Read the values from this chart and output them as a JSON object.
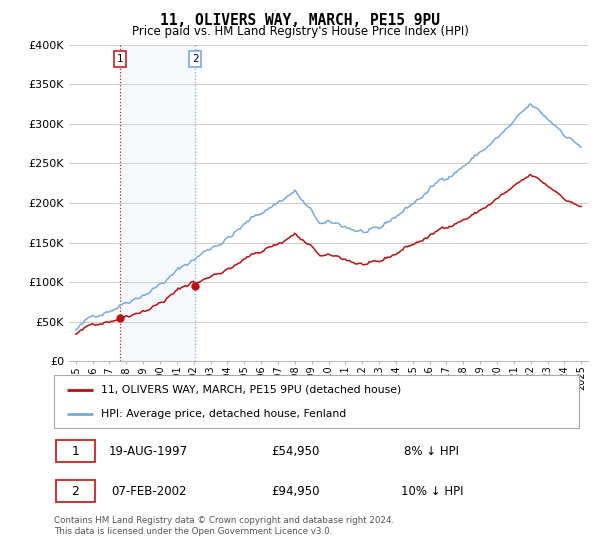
{
  "title": "11, OLIVERS WAY, MARCH, PE15 9PU",
  "subtitle": "Price paid vs. HM Land Registry's House Price Index (HPI)",
  "legend_line1": "11, OLIVERS WAY, MARCH, PE15 9PU (detached house)",
  "legend_line2": "HPI: Average price, detached house, Fenland",
  "purchase1_date": "19-AUG-1997",
  "purchase1_price": 54950,
  "purchase1_note": "8% ↓ HPI",
  "purchase2_date": "07-FEB-2002",
  "purchase2_price": 94950,
  "purchase2_note": "10% ↓ HPI",
  "purchase1_year": 1997.63,
  "purchase2_year": 2002.09,
  "footer": "Contains HM Land Registry data © Crown copyright and database right 2024.\nThis data is licensed under the Open Government Licence v3.0.",
  "price_line_color": "#bb1111",
  "hpi_line_color": "#7aaadd",
  "vline1_color": "#cc2222",
  "vline2_color": "#7aaadd",
  "shade_color": "#d0e0f0",
  "background_color": "#ffffff",
  "grid_color": "#cccccc",
  "ylim": [
    0,
    400000
  ],
  "yticks": [
    0,
    50000,
    100000,
    150000,
    200000,
    250000,
    300000,
    350000,
    400000
  ],
  "xstart": 1995,
  "xend": 2025
}
